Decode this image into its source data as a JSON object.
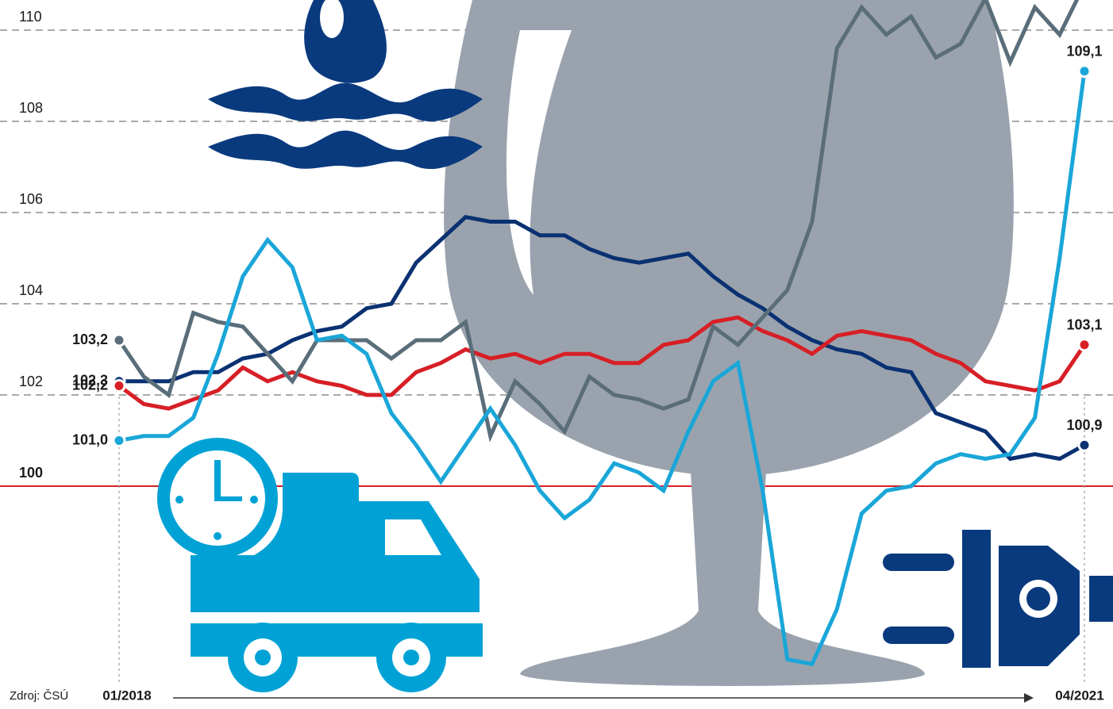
{
  "chart_data": {
    "type": "line",
    "source": "Zdroj: ČSÚ",
    "categories": [
      "01/2018",
      null,
      null,
      null,
      null,
      null,
      null,
      null,
      null,
      null,
      null,
      null,
      null,
      null,
      null,
      null,
      null,
      null,
      null,
      null,
      null,
      null,
      null,
      null,
      null,
      null,
      null,
      null,
      null,
      null,
      null,
      null,
      null,
      null,
      null,
      null,
      null,
      null,
      null,
      "04/2021"
    ],
    "ylim": [
      96,
      110.6
    ],
    "yticks": [
      100,
      102,
      104,
      106,
      108,
      110
    ],
    "grid": true,
    "reference": {
      "value": 100,
      "color": "#d71f26"
    },
    "series": [
      {
        "color": "#0a3172",
        "values": [
          102.3,
          102.3,
          102.3,
          102.5,
          102.5,
          102.8,
          102.9,
          103.2,
          103.4,
          103.5,
          103.9,
          104.0,
          104.9,
          105.4,
          105.9,
          105.8,
          105.8,
          105.5,
          105.5,
          105.2,
          105.0,
          104.9,
          105.0,
          105.1,
          104.6,
          104.2,
          103.9,
          103.5,
          103.2,
          103.0,
          102.9,
          102.6,
          102.5,
          101.6,
          101.4,
          101.2,
          100.6,
          100.7,
          100.6,
          100.9
        ],
        "value_labels": [
          "102,3",
          null,
          null,
          null,
          null,
          null,
          null,
          null,
          null,
          null,
          null,
          null,
          null,
          null,
          null,
          null,
          null,
          null,
          null,
          null,
          null,
          null,
          null,
          null,
          null,
          null,
          null,
          null,
          null,
          null,
          null,
          null,
          null,
          null,
          null,
          null,
          null,
          null,
          null,
          "100,9"
        ]
      },
      {
        "color": "#d71f26",
        "values": [
          102.2,
          101.8,
          101.7,
          101.9,
          102.1,
          102.6,
          102.3,
          102.5,
          102.3,
          102.2,
          102.0,
          102.0,
          102.5,
          102.7,
          103.0,
          102.8,
          102.9,
          102.7,
          102.9,
          102.9,
          102.7,
          102.7,
          103.1,
          103.2,
          103.6,
          103.7,
          103.4,
          103.2,
          102.9,
          103.3,
          103.4,
          103.3,
          103.2,
          102.9,
          102.7,
          102.3,
          102.2,
          102.1,
          102.3,
          103.1
        ],
        "value_labels": [
          "102,2",
          null,
          null,
          null,
          null,
          null,
          null,
          null,
          null,
          null,
          null,
          null,
          null,
          null,
          null,
          null,
          null,
          null,
          null,
          null,
          null,
          null,
          null,
          null,
          null,
          null,
          null,
          null,
          null,
          null,
          null,
          null,
          null,
          null,
          null,
          null,
          null,
          null,
          null,
          "103,1"
        ]
      },
      {
        "color": "#5a6e7a",
        "values": [
          103.2,
          102.4,
          102.0,
          103.8,
          103.6,
          103.5,
          102.9,
          102.3,
          103.2,
          103.2,
          103.2,
          102.8,
          103.2,
          103.2,
          103.6,
          101.1,
          102.3,
          101.8,
          101.2,
          102.4,
          102.0,
          101.9,
          101.7,
          101.9,
          103.5,
          103.1,
          103.7,
          104.3,
          105.8,
          109.6,
          110.5,
          109.9,
          110.3,
          109.4,
          109.7,
          110.7,
          109.3,
          110.5,
          109.9,
          111.0
        ],
        "value_labels": [
          "103,2",
          null,
          null,
          null,
          null,
          null,
          null,
          null,
          null,
          null,
          null,
          null,
          null,
          null,
          null,
          null,
          null,
          null,
          null,
          null,
          null,
          null,
          null,
          null,
          null,
          null,
          null,
          null,
          null,
          null,
          null,
          null,
          null,
          null,
          null,
          null,
          null,
          null,
          null,
          null
        ]
      },
      {
        "color": "#1aa6d8",
        "values": [
          101.0,
          101.1,
          101.1,
          101.5,
          102.9,
          104.6,
          105.4,
          104.8,
          103.2,
          103.3,
          102.9,
          101.6,
          100.9,
          100.1,
          100.9,
          101.7,
          100.9,
          99.9,
          99.3,
          99.7,
          100.5,
          100.3,
          99.9,
          101.2,
          102.3,
          102.7,
          99.9,
          96.2,
          96.1,
          97.3,
          99.4,
          99.9,
          100.0,
          100.5,
          100.7,
          100.6,
          100.7,
          101.5,
          105.0,
          109.1
        ],
        "value_labels": [
          "101,0",
          null,
          null,
          null,
          null,
          null,
          null,
          null,
          null,
          null,
          null,
          null,
          null,
          null,
          null,
          null,
          null,
          null,
          null,
          null,
          null,
          null,
          null,
          null,
          null,
          null,
          null,
          null,
          null,
          null,
          null,
          null,
          null,
          null,
          null,
          null,
          null,
          null,
          null,
          "109,1"
        ]
      }
    ]
  }
}
